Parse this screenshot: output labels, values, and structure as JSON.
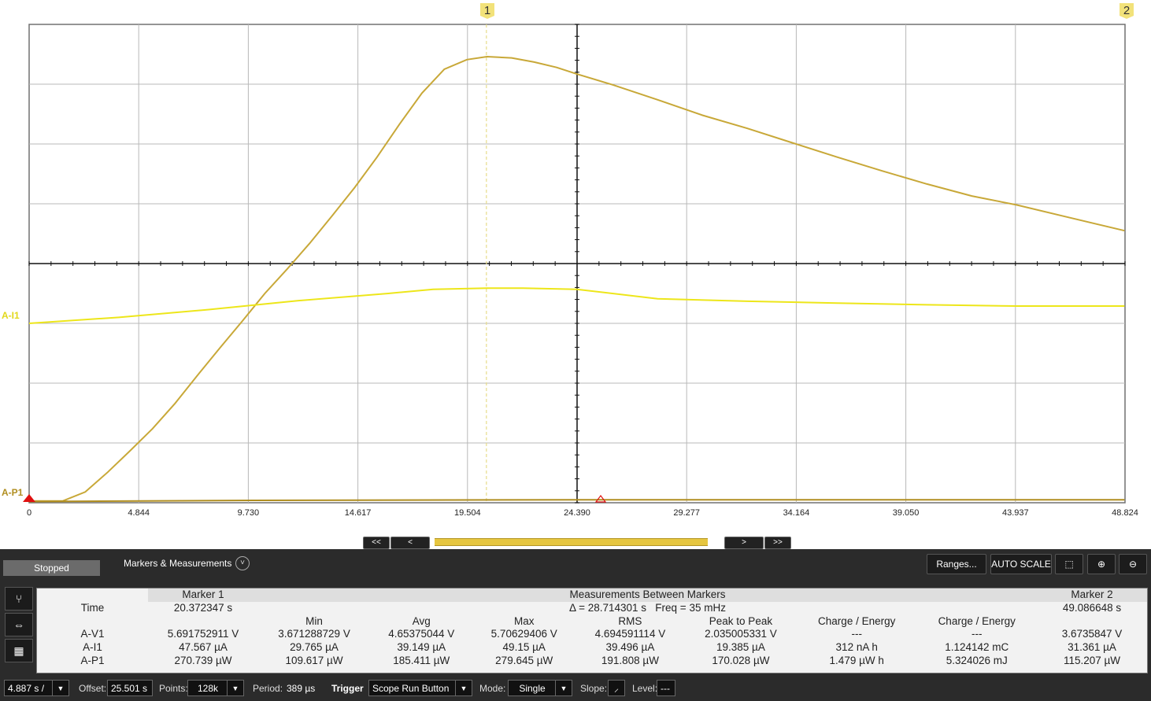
{
  "chart_data": {
    "type": "line",
    "x_ticks": [
      "0",
      "4.844",
      "9.730",
      "14.617",
      "19.504",
      "24.390",
      "29.277",
      "34.164",
      "39.050",
      "43.937",
      "48.824"
    ],
    "xlim": [
      0,
      48.824
    ],
    "grid": true,
    "series": [
      {
        "name": "A-V1",
        "color": "#c8a838",
        "x": [
          0,
          1.5,
          2.5,
          3.5,
          4.5,
          5.5,
          6.5,
          7.5,
          8.5,
          9.5,
          10.5,
          11.5,
          12.5,
          13.5,
          14.5,
          15.5,
          16.5,
          17.5,
          18.5,
          19.5,
          20.4,
          21.5,
          22.5,
          23.5,
          24.4,
          26,
          28,
          30,
          32,
          34,
          36,
          38,
          40,
          42,
          44,
          46,
          48.8
        ],
        "y": [
          -3.97,
          -3.97,
          -3.82,
          -3.49,
          -3.13,
          -2.76,
          -2.34,
          -1.87,
          -1.41,
          -0.96,
          -0.5,
          -0.09,
          0.34,
          0.8,
          1.27,
          1.78,
          2.33,
          2.85,
          3.25,
          3.41,
          3.46,
          3.44,
          3.37,
          3.28,
          3.17,
          2.99,
          2.74,
          2.48,
          2.26,
          2.02,
          1.78,
          1.55,
          1.33,
          1.13,
          0.98,
          0.8,
          0.55
        ]
      },
      {
        "name": "A-I1",
        "color": "#ede61a",
        "x": [
          0,
          4,
          8,
          12,
          16,
          18,
          20.4,
          22,
          24.4,
          28,
          32,
          36,
          40,
          44,
          48.8
        ],
        "y": [
          -1.0,
          -0.9,
          -0.77,
          -0.62,
          -0.5,
          -0.43,
          -0.41,
          -0.41,
          -0.43,
          -0.59,
          -0.63,
          -0.66,
          -0.69,
          -0.71,
          -0.71
        ]
      },
      {
        "name": "A-P1",
        "color": "#b08e20",
        "x": [
          0,
          10,
          24.4,
          36,
          48.8
        ],
        "y": [
          -3.98,
          -3.96,
          -3.95,
          -3.95,
          -3.95
        ]
      }
    ]
  },
  "markers": {
    "m1": "1",
    "m2": "2"
  },
  "channels": {
    "i1": "A-I1",
    "p1": "A-P1"
  },
  "nav": {
    "first": "<<",
    "prev": "<",
    "next": ">",
    "last": ">>"
  },
  "toolbar": {
    "status": "Stopped",
    "markers_title": "Markers & Measurements",
    "ranges": "Ranges...",
    "auto_scale": "AUTO SCALE"
  },
  "measurements": {
    "marker1_header": "Marker 1",
    "between_header": "Measurements Between Markers",
    "marker2_header": "Marker 2",
    "time_label": "Time",
    "marker1_time": "20.372347 s",
    "delta": "Δ = 28.714301 s",
    "freq": "Freq = 35 mHz",
    "marker2_time": "49.086648 s",
    "columns": [
      "Min",
      "Avg",
      "Max",
      "RMS",
      "Peak to Peak",
      "Charge / Energy",
      "Charge / Energy"
    ],
    "rows": [
      {
        "name": "A-V1",
        "m1": "5.691752911 V",
        "min": "3.671288729 V",
        "avg": "4.65375044 V",
        "max": "5.70629406 V",
        "rms": "4.694591114 V",
        "p2p": "2.035005331 V",
        "ce1": "---",
        "ce2": "---",
        "m2": "3.6735847 V"
      },
      {
        "name": "A-I1",
        "m1": "47.567 µA",
        "min": "29.765 µA",
        "avg": "39.149 µA",
        "max": "49.15 µA",
        "rms": "39.496 µA",
        "p2p": "19.385 µA",
        "ce1": "312 nA h",
        "ce2": "1.124142 mC",
        "m2": "31.361 µA"
      },
      {
        "name": "A-P1",
        "m1": "270.739 µW",
        "min": "109.617 µW",
        "avg": "185.411 µW",
        "max": "279.645 µW",
        "rms": "191.808 µW",
        "p2p": "170.028 µW",
        "ce1": "1.479 µW h",
        "ce2": "5.324026 mJ",
        "m2": "115.207 µW"
      }
    ]
  },
  "bottom": {
    "timebase": "4.887 s /",
    "offset_label": "Offset:",
    "offset_value": "25.501 s",
    "points_label": "Points:",
    "points_value": "128k",
    "period_label": "Period:",
    "period_value": "389 µs",
    "trigger_label": "Trigger",
    "trigger_value": "Scope Run Button",
    "mode_label": "Mode:",
    "mode_value": "Single",
    "slope_label": "Slope:",
    "level_label": "Level:",
    "level_value": "---"
  }
}
